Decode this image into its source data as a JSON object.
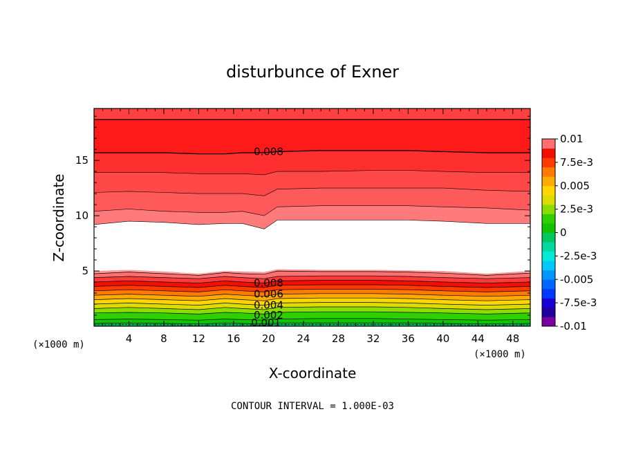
{
  "chart_data": {
    "type": "contour",
    "title": "disturbunce of Exner",
    "xlabel": "X-coordinate",
    "ylabel": "Z-coordinate",
    "x_unit": "(×1000 m)",
    "y_unit": "(×1000 m)",
    "xlim": [
      0,
      50
    ],
    "ylim": [
      0,
      19.7
    ],
    "x_ticks": [
      "4",
      "8",
      "12",
      "16",
      "20",
      "24",
      "28",
      "32",
      "36",
      "40",
      "44",
      "48"
    ],
    "y_ticks": [
      "5",
      "10",
      "15"
    ],
    "footer": "CONTOUR INTERVAL = 1.000E-03",
    "colorbar": {
      "labels": [
        "0.01",
        "7.5e-3",
        "0.005",
        "2.5e-3",
        "0",
        "-2.5e-3",
        "-0.005",
        "-7.5e-3",
        "-0.01"
      ],
      "levels": [
        -0.01,
        -0.009,
        -0.008,
        -0.007,
        -0.006,
        -0.005,
        -0.004,
        -0.003,
        -0.002,
        -0.001,
        0,
        0.001,
        0.002,
        0.003,
        0.004,
        0.005,
        0.006,
        0.007,
        0.008,
        0.009,
        0.01
      ],
      "colors": [
        "#7a00a0",
        "#22009e",
        "#1600d6",
        "#0038ff",
        "#0066ff",
        "#0096ff",
        "#00c8ff",
        "#00ead8",
        "#00d9a0",
        "#00c860",
        "#11c400",
        "#2ed000",
        "#8cdc00",
        "#dcdc00",
        "#ffd700",
        "#ffaa00",
        "#ff7a00",
        "#ff3a00",
        "#f40e00",
        "#ff6f6f"
      ]
    },
    "contour_labels": [
      {
        "text": "0.008",
        "x": 18.3,
        "z": 15.8
      },
      {
        "text": "0.008",
        "x": 18.3,
        "z": 3.9
      },
      {
        "text": "0.006",
        "x": 18.3,
        "z": 2.9
      },
      {
        "text": "0.004",
        "x": 18.3,
        "z": 1.9
      },
      {
        "text": "0.002",
        "x": 18.3,
        "z": 1.0
      },
      {
        "text": "0.001",
        "x": 18.0,
        "z": 0.3
      }
    ],
    "bands": [
      {
        "level": 0.009,
        "color": "#ff9a9a",
        "z": [
          9.2,
          9.5,
          9.4,
          9.2,
          9.3,
          9.3,
          8.8,
          9.6,
          9.6,
          9.6,
          9.6,
          9.5,
          9.3,
          9.3
        ]
      },
      {
        "level": 0.009,
        "color": "#ff7b7b",
        "z": [
          10.4,
          10.6,
          10.4,
          10.3,
          10.3,
          10.4,
          10.0,
          10.8,
          10.9,
          10.9,
          10.9,
          10.8,
          10.7,
          10.5
        ]
      },
      {
        "level": 0.009,
        "color": "#ff5a5a",
        "z": [
          12.1,
          12.2,
          12.1,
          12.0,
          12.0,
          12.0,
          11.8,
          12.4,
          12.5,
          12.5,
          12.5,
          12.5,
          12.3,
          12.2
        ]
      },
      {
        "level": 0.009,
        "color": "#ff4848",
        "z": [
          13.9,
          13.9,
          13.9,
          13.8,
          13.8,
          13.8,
          13.7,
          14.0,
          14.0,
          14.1,
          14.1,
          14.0,
          13.9,
          13.9
        ]
      },
      {
        "level": 0.008,
        "color": "#ff2f2f",
        "z": [
          15.7,
          15.7,
          15.7,
          15.6,
          15.6,
          15.7,
          15.7,
          15.8,
          15.9,
          15.9,
          15.9,
          15.8,
          15.7,
          15.7
        ]
      },
      {
        "level": 0.008,
        "color": "#ff1a1a",
        "z": [
          18.7,
          18.7,
          18.7,
          18.7,
          18.7,
          18.7,
          18.7,
          18.7,
          18.7,
          18.7,
          18.7,
          18.7,
          18.7,
          18.7
        ]
      },
      {
        "level": 0.009,
        "color": "#ff4040",
        "z": [
          19.7,
          19.7,
          19.7,
          19.7,
          19.7,
          19.7,
          19.7,
          19.7,
          19.7,
          19.7,
          19.7,
          19.7,
          19.7,
          19.7
        ]
      }
    ],
    "lower_bands": [
      {
        "color": "#00b85a",
        "z": [
          0.0,
          0.0,
          0.0,
          0.0,
          0.0,
          0.0,
          0.0,
          0.0,
          0.0,
          0.0,
          0.0,
          0.0,
          0.0,
          0.0
        ]
      },
      {
        "color": "#11c400",
        "z": [
          0.25,
          0.3,
          0.25,
          0.2,
          0.3,
          0.25,
          0.2,
          0.3,
          0.3,
          0.3,
          0.3,
          0.25,
          0.2,
          0.25
        ]
      },
      {
        "color": "#2ed000",
        "z": [
          0.6,
          0.65,
          0.6,
          0.55,
          0.65,
          0.6,
          0.55,
          0.65,
          0.7,
          0.7,
          0.65,
          0.6,
          0.55,
          0.6
        ]
      },
      {
        "color": "#8cdc00",
        "z": [
          1.2,
          1.25,
          1.2,
          1.1,
          1.25,
          1.2,
          1.1,
          1.25,
          1.3,
          1.3,
          1.25,
          1.2,
          1.1,
          1.2
        ]
      },
      {
        "color": "#dcdc00",
        "z": [
          1.6,
          1.7,
          1.6,
          1.5,
          1.7,
          1.6,
          1.5,
          1.7,
          1.75,
          1.75,
          1.7,
          1.6,
          1.5,
          1.6
        ]
      },
      {
        "color": "#ffd700",
        "z": [
          2.0,
          2.1,
          2.0,
          1.9,
          2.1,
          2.0,
          1.9,
          2.1,
          2.15,
          2.15,
          2.1,
          2.0,
          1.9,
          2.0
        ]
      },
      {
        "color": "#ffaa00",
        "z": [
          2.4,
          2.5,
          2.4,
          2.3,
          2.5,
          2.4,
          2.3,
          2.5,
          2.55,
          2.55,
          2.5,
          2.4,
          2.3,
          2.4
        ]
      },
      {
        "color": "#ff7a00",
        "z": [
          2.8,
          2.9,
          2.8,
          2.7,
          2.9,
          2.8,
          2.7,
          2.9,
          2.95,
          2.95,
          2.9,
          2.8,
          2.7,
          2.8
        ]
      },
      {
        "color": "#ff3a00",
        "z": [
          3.2,
          3.3,
          3.2,
          3.1,
          3.3,
          3.2,
          3.1,
          3.3,
          3.35,
          3.35,
          3.3,
          3.2,
          3.1,
          3.2
        ]
      },
      {
        "color": "#f40e00",
        "z": [
          3.6,
          3.7,
          3.6,
          3.5,
          3.7,
          3.6,
          3.5,
          3.7,
          3.75,
          3.75,
          3.7,
          3.6,
          3.5,
          3.6
        ]
      },
      {
        "color": "#ff3a3a",
        "z": [
          4.0,
          4.1,
          4.0,
          3.9,
          4.1,
          4.0,
          3.9,
          4.1,
          4.15,
          4.15,
          4.1,
          4.0,
          3.9,
          4.0
        ]
      },
      {
        "color": "#ff6f6f",
        "z": [
          4.4,
          4.5,
          4.4,
          4.3,
          4.5,
          4.4,
          4.3,
          4.5,
          4.55,
          4.55,
          4.5,
          4.4,
          4.3,
          4.4
        ]
      },
      {
        "color": "#ff9a9a",
        "z": [
          4.75,
          4.9,
          4.75,
          4.6,
          4.85,
          4.75,
          4.7,
          5.0,
          4.95,
          4.95,
          4.9,
          4.8,
          4.6,
          4.8
        ]
      }
    ],
    "lower_top": [
      5.0,
      5.1,
      4.95,
      4.75,
      5.0,
      4.95,
      4.9,
      5.15,
      5.1,
      5.1,
      5.05,
      5.0,
      4.75,
      5.0
    ],
    "x_samples": [
      0,
      4,
      8,
      12,
      15,
      17,
      19.5,
      21,
      26,
      32,
      36,
      40,
      45,
      50
    ]
  }
}
